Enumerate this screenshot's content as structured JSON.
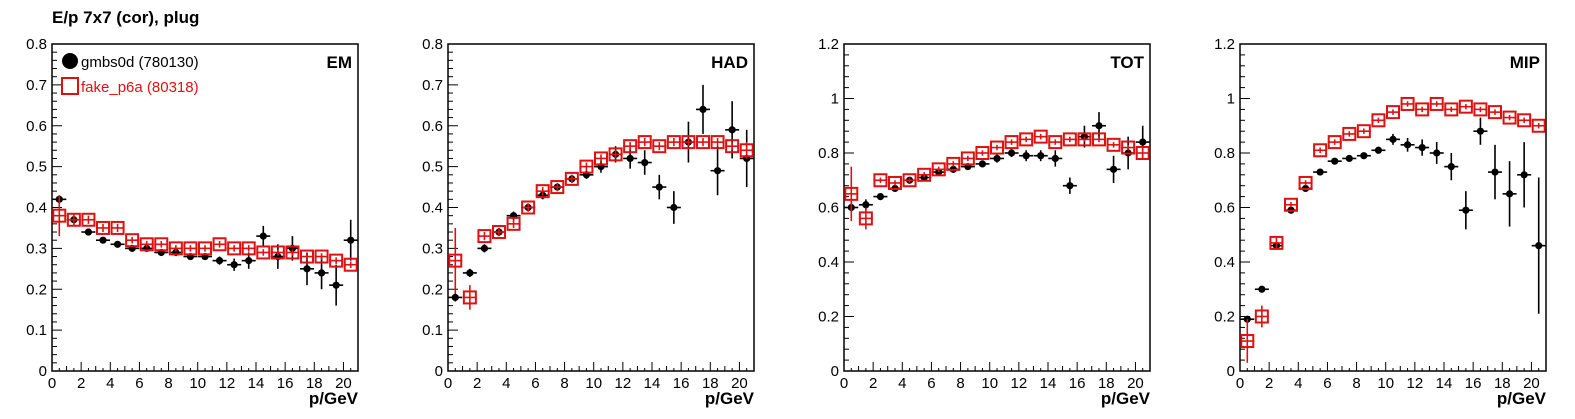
{
  "title": "E/p 7x7 (cor), plug",
  "legend": {
    "series": [
      {
        "name": "gmbs0d (780130)",
        "color": "#000000",
        "marker": "filled-circle"
      },
      {
        "name": "fake_p6a (80318)",
        "color": "#dd1111",
        "marker": "open-square"
      }
    ]
  },
  "chart_data": [
    {
      "type": "scatter",
      "panel_label": "EM",
      "xlabel": "p/GeV",
      "xlim": [
        0,
        21
      ],
      "ylim": [
        0,
        0.8
      ],
      "xticks": [
        0,
        2,
        4,
        6,
        8,
        10,
        12,
        14,
        16,
        18,
        20
      ],
      "yticks": [
        0,
        0.1,
        0.2,
        0.3,
        0.4,
        0.5,
        0.6,
        0.7,
        0.8
      ],
      "ytick_labels": [
        "0",
        "0.1",
        "0.2",
        "0.3",
        "0.4",
        "0.5",
        "0.6",
        "0.7",
        "0.8"
      ],
      "series": [
        {
          "name": "gmbs0d (780130)",
          "color": "#000000",
          "x": [
            0.5,
            1.5,
            2.5,
            3.5,
            4.5,
            5.5,
            6.5,
            7.5,
            8.5,
            9.5,
            10.5,
            11.5,
            12.5,
            13.5,
            14.5,
            15.5,
            16.5,
            17.5,
            18.5,
            19.5,
            20.5
          ],
          "y": [
            0.42,
            0.37,
            0.34,
            0.32,
            0.31,
            0.3,
            0.3,
            0.29,
            0.29,
            0.28,
            0.28,
            0.27,
            0.26,
            0.27,
            0.33,
            0.28,
            0.3,
            0.25,
            0.24,
            0.21,
            0.32
          ],
          "yerr": [
            0.01,
            0.01,
            0.005,
            0.005,
            0.005,
            0.005,
            0.005,
            0.005,
            0.005,
            0.005,
            0.008,
            0.01,
            0.015,
            0.02,
            0.025,
            0.03,
            0.03,
            0.04,
            0.04,
            0.05,
            0.05
          ]
        },
        {
          "name": "fake_p6a (80318)",
          "color": "#dd1111",
          "x": [
            0.5,
            1.5,
            2.5,
            3.5,
            4.5,
            5.5,
            6.5,
            7.5,
            8.5,
            9.5,
            10.5,
            11.5,
            12.5,
            13.5,
            14.5,
            15.5,
            16.5,
            17.5,
            18.5,
            19.5,
            20.5
          ],
          "y": [
            0.38,
            0.37,
            0.37,
            0.35,
            0.35,
            0.32,
            0.31,
            0.31,
            0.3,
            0.3,
            0.3,
            0.31,
            0.3,
            0.3,
            0.29,
            0.29,
            0.29,
            0.28,
            0.28,
            0.27,
            0.26
          ],
          "yerr": [
            0.05,
            0.015,
            0.01,
            0.01,
            0.01,
            0.008,
            0.008,
            0.008,
            0.008,
            0.008,
            0.008,
            0.008,
            0.008,
            0.008,
            0.008,
            0.008,
            0.008,
            0.008,
            0.008,
            0.008,
            0.008
          ]
        }
      ]
    },
    {
      "type": "scatter",
      "panel_label": "HAD",
      "xlabel": "p/GeV",
      "xlim": [
        0,
        21
      ],
      "ylim": [
        0,
        0.8
      ],
      "xticks": [
        0,
        2,
        4,
        6,
        8,
        10,
        12,
        14,
        16,
        18,
        20
      ],
      "yticks": [
        0,
        0.1,
        0.2,
        0.3,
        0.4,
        0.5,
        0.6,
        0.7,
        0.8
      ],
      "ytick_labels": [
        "0",
        "0.1",
        "0.2",
        "0.3",
        "0.4",
        "0.5",
        "0.6",
        "0.7",
        "0.8"
      ],
      "series": [
        {
          "name": "gmbs0d (780130)",
          "color": "#000000",
          "x": [
            0.5,
            1.5,
            2.5,
            3.5,
            4.5,
            5.5,
            6.5,
            7.5,
            8.5,
            9.5,
            10.5,
            11.5,
            12.5,
            13.5,
            14.5,
            15.5,
            16.5,
            17.5,
            18.5,
            19.5,
            20.5
          ],
          "y": [
            0.18,
            0.24,
            0.3,
            0.34,
            0.38,
            0.4,
            0.43,
            0.45,
            0.47,
            0.48,
            0.5,
            0.53,
            0.52,
            0.51,
            0.45,
            0.4,
            0.56,
            0.64,
            0.49,
            0.59,
            0.52
          ],
          "yerr": [
            0.01,
            0.01,
            0.01,
            0.01,
            0.01,
            0.01,
            0.01,
            0.01,
            0.01,
            0.01,
            0.015,
            0.02,
            0.025,
            0.03,
            0.03,
            0.04,
            0.05,
            0.06,
            0.06,
            0.07,
            0.07
          ]
        },
        {
          "name": "fake_p6a (80318)",
          "color": "#dd1111",
          "x": [
            0.5,
            1.5,
            2.5,
            3.5,
            4.5,
            5.5,
            6.5,
            7.5,
            8.5,
            9.5,
            10.5,
            11.5,
            12.5,
            13.5,
            14.5,
            15.5,
            16.5,
            17.5,
            18.5,
            19.5,
            20.5
          ],
          "y": [
            0.27,
            0.18,
            0.33,
            0.34,
            0.36,
            0.4,
            0.44,
            0.45,
            0.47,
            0.5,
            0.52,
            0.53,
            0.55,
            0.56,
            0.55,
            0.56,
            0.56,
            0.56,
            0.56,
            0.55,
            0.54
          ],
          "yerr": [
            0.08,
            0.03,
            0.01,
            0.01,
            0.01,
            0.01,
            0.01,
            0.01,
            0.01,
            0.01,
            0.01,
            0.01,
            0.01,
            0.01,
            0.01,
            0.01,
            0.01,
            0.01,
            0.01,
            0.01,
            0.02
          ]
        }
      ]
    },
    {
      "type": "scatter",
      "panel_label": "TOT",
      "xlabel": "p/GeV",
      "xlim": [
        0,
        21
      ],
      "ylim": [
        0,
        1.2
      ],
      "xticks": [
        0,
        2,
        4,
        6,
        8,
        10,
        12,
        14,
        16,
        18,
        20
      ],
      "yticks": [
        0,
        0.2,
        0.4,
        0.6,
        0.8,
        1.0,
        1.2
      ],
      "ytick_labels": [
        "0",
        "0.2",
        "0.4",
        "0.6",
        "0.8",
        "1",
        "1.2"
      ],
      "series": [
        {
          "name": "gmbs0d (780130)",
          "color": "#000000",
          "x": [
            0.5,
            1.5,
            2.5,
            3.5,
            4.5,
            5.5,
            6.5,
            7.5,
            8.5,
            9.5,
            10.5,
            11.5,
            12.5,
            13.5,
            14.5,
            15.5,
            16.5,
            17.5,
            18.5,
            19.5,
            20.5
          ],
          "y": [
            0.6,
            0.61,
            0.64,
            0.67,
            0.7,
            0.71,
            0.73,
            0.74,
            0.75,
            0.76,
            0.78,
            0.8,
            0.79,
            0.79,
            0.78,
            0.68,
            0.86,
            0.9,
            0.74,
            0.8,
            0.84
          ],
          "yerr": [
            0.02,
            0.02,
            0.01,
            0.01,
            0.01,
            0.01,
            0.01,
            0.01,
            0.01,
            0.01,
            0.015,
            0.015,
            0.02,
            0.02,
            0.03,
            0.03,
            0.04,
            0.05,
            0.05,
            0.06,
            0.06
          ]
        },
        {
          "name": "fake_p6a (80318)",
          "color": "#dd1111",
          "x": [
            0.5,
            1.5,
            2.5,
            3.5,
            4.5,
            5.5,
            6.5,
            7.5,
            8.5,
            9.5,
            10.5,
            11.5,
            12.5,
            13.5,
            14.5,
            15.5,
            16.5,
            17.5,
            18.5,
            19.5,
            20.5
          ],
          "y": [
            0.65,
            0.56,
            0.7,
            0.69,
            0.7,
            0.72,
            0.74,
            0.76,
            0.78,
            0.8,
            0.82,
            0.84,
            0.85,
            0.86,
            0.84,
            0.85,
            0.85,
            0.85,
            0.83,
            0.82,
            0.8
          ],
          "yerr": [
            0.1,
            0.04,
            0.01,
            0.01,
            0.01,
            0.01,
            0.01,
            0.01,
            0.01,
            0.01,
            0.01,
            0.01,
            0.01,
            0.01,
            0.01,
            0.01,
            0.01,
            0.01,
            0.01,
            0.01,
            0.02
          ]
        }
      ]
    },
    {
      "type": "scatter",
      "panel_label": "MIP",
      "xlabel": "p/GeV",
      "xlim": [
        0,
        21
      ],
      "ylim": [
        0,
        1.2
      ],
      "xticks": [
        0,
        2,
        4,
        6,
        8,
        10,
        12,
        14,
        16,
        18,
        20
      ],
      "yticks": [
        0,
        0.2,
        0.4,
        0.6,
        0.8,
        1.0,
        1.2
      ],
      "ytick_labels": [
        "0",
        "0.2",
        "0.4",
        "0.6",
        "0.8",
        "1",
        "1.2"
      ],
      "series": [
        {
          "name": "gmbs0d (780130)",
          "color": "#000000",
          "x": [
            0.5,
            1.5,
            2.5,
            3.5,
            4.5,
            5.5,
            6.5,
            7.5,
            8.5,
            9.5,
            10.5,
            11.5,
            12.5,
            13.5,
            14.5,
            15.5,
            16.5,
            17.5,
            18.5,
            19.5,
            20.5
          ],
          "y": [
            0.19,
            0.3,
            0.46,
            0.59,
            0.67,
            0.73,
            0.77,
            0.78,
            0.79,
            0.81,
            0.85,
            0.83,
            0.82,
            0.8,
            0.75,
            0.59,
            0.88,
            0.73,
            0.65,
            0.72,
            0.46
          ],
          "yerr": [
            0.01,
            0.01,
            0.01,
            0.01,
            0.01,
            0.01,
            0.01,
            0.01,
            0.01,
            0.01,
            0.02,
            0.025,
            0.03,
            0.04,
            0.05,
            0.07,
            0.05,
            0.1,
            0.12,
            0.12,
            0.25
          ]
        },
        {
          "name": "fake_p6a (80318)",
          "color": "#dd1111",
          "x": [
            0.5,
            1.5,
            2.5,
            3.5,
            4.5,
            5.5,
            6.5,
            7.5,
            8.5,
            9.5,
            10.5,
            11.5,
            12.5,
            13.5,
            14.5,
            15.5,
            16.5,
            17.5,
            18.5,
            19.5,
            20.5
          ],
          "y": [
            0.11,
            0.2,
            0.47,
            0.61,
            0.69,
            0.81,
            0.84,
            0.87,
            0.88,
            0.92,
            0.95,
            0.98,
            0.96,
            0.98,
            0.96,
            0.97,
            0.96,
            0.95,
            0.93,
            0.92,
            0.9
          ],
          "yerr": [
            0.08,
            0.04,
            0.02,
            0.01,
            0.01,
            0.01,
            0.01,
            0.01,
            0.01,
            0.01,
            0.01,
            0.01,
            0.01,
            0.01,
            0.01,
            0.01,
            0.01,
            0.01,
            0.01,
            0.01,
            0.01
          ]
        }
      ]
    }
  ]
}
